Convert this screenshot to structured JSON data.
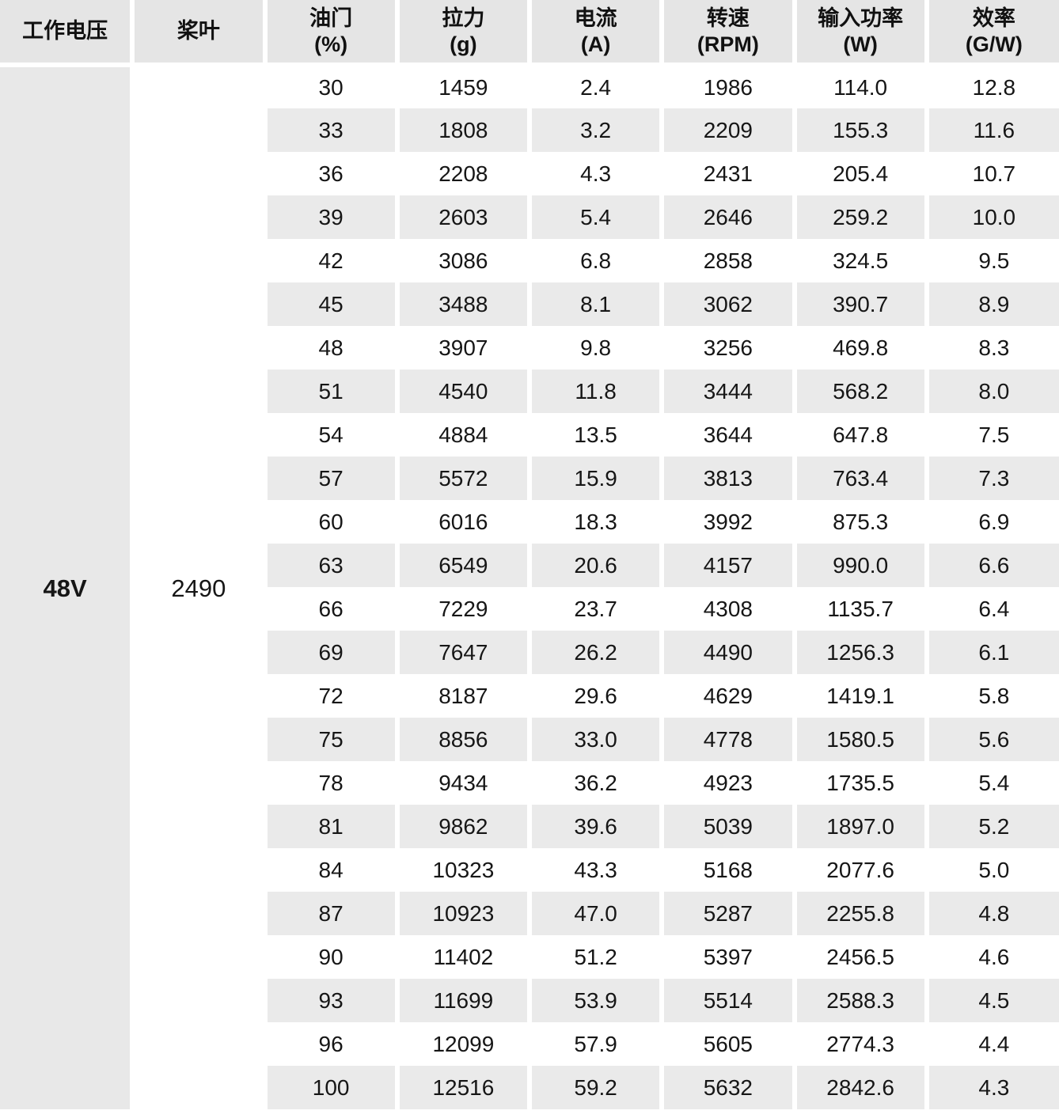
{
  "colors": {
    "header_bg": "#e5e5e5",
    "stripe_bg": "#eaeaea",
    "voltage_cell_bg": "#e8e8e8",
    "page_bg": "#ffffff",
    "text": "#161616"
  },
  "chart_data": {
    "type": "table",
    "title": "",
    "columns": [
      {
        "label": "工作电压",
        "unit": ""
      },
      {
        "label": "桨叶",
        "unit": ""
      },
      {
        "label": "油门",
        "unit": "(%)"
      },
      {
        "label": "拉力",
        "unit": "(g)"
      },
      {
        "label": "电流",
        "unit": "(A)"
      },
      {
        "label": "转速",
        "unit": "(RPM)"
      },
      {
        "label": "输入功率",
        "unit": "(W)"
      },
      {
        "label": "效率",
        "unit": "(G/W)"
      }
    ],
    "voltage": "48V",
    "propeller": "2490",
    "rows": [
      [
        "30",
        "1459",
        "2.4",
        "1986",
        "114.0",
        "12.8"
      ],
      [
        "33",
        "1808",
        "3.2",
        "2209",
        "155.3",
        "11.6"
      ],
      [
        "36",
        "2208",
        "4.3",
        "2431",
        "205.4",
        "10.7"
      ],
      [
        "39",
        "2603",
        "5.4",
        "2646",
        "259.2",
        "10.0"
      ],
      [
        "42",
        "3086",
        "6.8",
        "2858",
        "324.5",
        "9.5"
      ],
      [
        "45",
        "3488",
        "8.1",
        "3062",
        "390.7",
        "8.9"
      ],
      [
        "48",
        "3907",
        "9.8",
        "3256",
        "469.8",
        "8.3"
      ],
      [
        "51",
        "4540",
        "11.8",
        "3444",
        "568.2",
        "8.0"
      ],
      [
        "54",
        "4884",
        "13.5",
        "3644",
        "647.8",
        "7.5"
      ],
      [
        "57",
        "5572",
        "15.9",
        "3813",
        "763.4",
        "7.3"
      ],
      [
        "60",
        "6016",
        "18.3",
        "3992",
        "875.3",
        "6.9"
      ],
      [
        "63",
        "6549",
        "20.6",
        "4157",
        "990.0",
        "6.6"
      ],
      [
        "66",
        "7229",
        "23.7",
        "4308",
        "1135.7",
        "6.4"
      ],
      [
        "69",
        "7647",
        "26.2",
        "4490",
        "1256.3",
        "6.1"
      ],
      [
        "72",
        "8187",
        "29.6",
        "4629",
        "1419.1",
        "5.8"
      ],
      [
        "75",
        "8856",
        "33.0",
        "4778",
        "1580.5",
        "5.6"
      ],
      [
        "78",
        "9434",
        "36.2",
        "4923",
        "1735.5",
        "5.4"
      ],
      [
        "81",
        "9862",
        "39.6",
        "5039",
        "1897.0",
        "5.2"
      ],
      [
        "84",
        "10323",
        "43.3",
        "5168",
        "2077.6",
        "5.0"
      ],
      [
        "87",
        "10923",
        "47.0",
        "5287",
        "2255.8",
        "4.8"
      ],
      [
        "90",
        "11402",
        "51.2",
        "5397",
        "2456.5",
        "4.6"
      ],
      [
        "93",
        "11699",
        "53.9",
        "5514",
        "2588.3",
        "4.5"
      ],
      [
        "96",
        "12099",
        "57.9",
        "5605",
        "2774.3",
        "4.4"
      ],
      [
        "100",
        "12516",
        "59.2",
        "5632",
        "2842.6",
        "4.3"
      ]
    ]
  }
}
